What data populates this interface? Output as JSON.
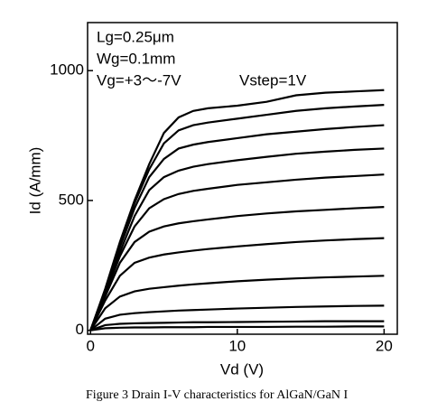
{
  "chart_data": {
    "type": "line",
    "x_label": "Vd (V)",
    "y_label": "Id (A/mm)",
    "annotations": [
      "Lg=0.25μm",
      "Wg=0.1mm",
      "Vg=+3～-7V",
      "Vstep=1V"
    ],
    "caption": "Figure 3 Drain I-V characteristics for AlGaN/GaN I",
    "xlim": [
      -0.2,
      20.9
    ],
    "ylim": [
      -15,
      1185
    ],
    "xticks": [
      0,
      10,
      20
    ],
    "yticks": [
      0,
      500,
      1000
    ],
    "x": [
      0,
      1,
      2,
      3,
      4,
      5,
      6,
      7,
      8,
      10,
      12,
      14,
      16,
      18,
      20
    ],
    "color": "#000000",
    "series": [
      {
        "values": [
          0,
          160,
          340,
          500,
          640,
          760,
          820,
          845,
          855,
          865,
          880,
          905,
          915,
          920,
          925
        ]
      },
      {
        "values": [
          0,
          155,
          330,
          490,
          620,
          720,
          770,
          790,
          800,
          815,
          830,
          845,
          855,
          862,
          868
        ]
      },
      {
        "values": [
          0,
          150,
          320,
          470,
          590,
          660,
          700,
          715,
          725,
          740,
          755,
          765,
          775,
          783,
          790
        ]
      },
      {
        "values": [
          0,
          145,
          300,
          440,
          540,
          590,
          615,
          630,
          640,
          655,
          668,
          680,
          688,
          695,
          700
        ]
      },
      {
        "values": [
          0,
          140,
          285,
          400,
          470,
          505,
          525,
          537,
          545,
          560,
          570,
          580,
          588,
          594,
          600
        ]
      },
      {
        "values": [
          0,
          130,
          260,
          340,
          380,
          400,
          412,
          420,
          427,
          440,
          450,
          458,
          464,
          470,
          475
        ]
      },
      {
        "values": [
          0,
          115,
          210,
          260,
          280,
          292,
          300,
          307,
          313,
          323,
          332,
          340,
          346,
          351,
          355
        ]
      },
      {
        "values": [
          0,
          85,
          130,
          150,
          160,
          166,
          172,
          177,
          181,
          189,
          195,
          200,
          204,
          207,
          210
        ]
      },
      {
        "values": [
          0,
          45,
          60,
          66,
          70,
          73,
          76,
          78,
          80,
          84,
          87,
          90,
          92,
          94,
          95
        ]
      },
      {
        "values": [
          0,
          20,
          25,
          27,
          28,
          29,
          30,
          31,
          31,
          32,
          33,
          34,
          35,
          35,
          35
        ]
      },
      {
        "values": [
          0,
          8,
          10,
          11,
          11,
          12,
          12,
          12,
          13,
          13,
          13,
          14,
          14,
          15,
          15
        ]
      }
    ]
  }
}
